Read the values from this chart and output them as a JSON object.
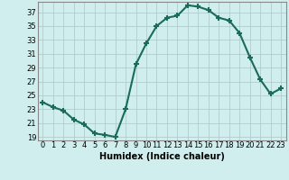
{
  "x": [
    0,
    1,
    2,
    3,
    4,
    5,
    6,
    7,
    8,
    9,
    10,
    11,
    12,
    13,
    14,
    15,
    16,
    17,
    18,
    19,
    20,
    21,
    22,
    23
  ],
  "y": [
    24.0,
    23.3,
    22.8,
    21.5,
    20.8,
    19.5,
    19.3,
    19.0,
    23.0,
    29.5,
    32.5,
    35.0,
    36.2,
    36.5,
    38.0,
    37.8,
    37.3,
    36.2,
    35.8,
    34.0,
    30.5,
    27.3,
    25.2,
    26.0
  ],
  "line_color": "#1a6b5a",
  "marker": "+",
  "markersize": 5,
  "markeredgewidth": 1.5,
  "linewidth": 1.5,
  "bg_color": "#d0eeee",
  "grid_color": "#b0cccc",
  "xlabel": "Humidex (Indice chaleur)",
  "xlabel_fontsize": 7,
  "tick_fontsize": 6,
  "yticks": [
    19,
    21,
    23,
    25,
    27,
    29,
    31,
    33,
    35,
    37
  ],
  "xticks": [
    0,
    1,
    2,
    3,
    4,
    5,
    6,
    7,
    8,
    9,
    10,
    11,
    12,
    13,
    14,
    15,
    16,
    17,
    18,
    19,
    20,
    21,
    22,
    23
  ],
  "ylim": [
    18.5,
    38.5
  ],
  "xlim": [
    -0.5,
    23.5
  ],
  "spine_color": "#888888"
}
